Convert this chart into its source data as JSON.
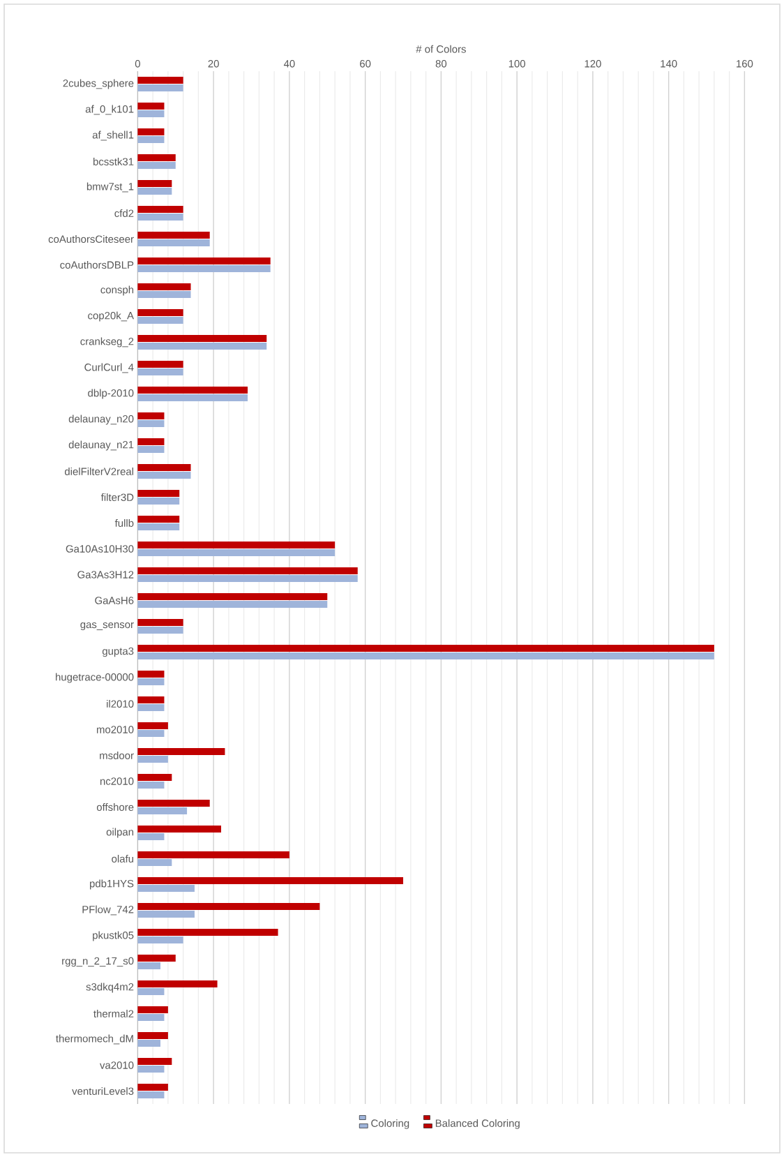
{
  "chart_data": {
    "type": "bar",
    "orientation": "horizontal",
    "xlabel": "# of Colors",
    "categories": [
      "2cubes_sphere",
      "af_0_k101",
      "af_shell1",
      "bcsstk31",
      "bmw7st_1",
      "cfd2",
      "coAuthorsCiteseer",
      "coAuthorsDBLP",
      "consph",
      "cop20k_A",
      "crankseg_2",
      "CurlCurl_4",
      "dblp-2010",
      "delaunay_n20",
      "delaunay_n21",
      "dielFilterV2real",
      "filter3D",
      "fullb",
      "Ga10As10H30",
      "Ga3As3H12",
      "GaAsH6",
      "gas_sensor",
      "gupta3",
      "hugetrace-00000",
      "il2010",
      "mo2010",
      "msdoor",
      "nc2010",
      "offshore",
      "oilpan",
      "olafu",
      "pdb1HYS",
      "PFlow_742",
      "pkustk05",
      "rgg_n_2_17_s0",
      "s3dkq4m2",
      "thermal2",
      "thermomech_dM",
      "va2010",
      "venturiLevel3"
    ],
    "series": [
      {
        "name": "Coloring",
        "color": "#9fb4da",
        "values": [
          12,
          7,
          7,
          10,
          9,
          12,
          19,
          35,
          14,
          12,
          34,
          12,
          29,
          7,
          7,
          14,
          11,
          11,
          52,
          58,
          50,
          12,
          152,
          7,
          7,
          7,
          8,
          7,
          13,
          7,
          9,
          15,
          15,
          12,
          6,
          7,
          7,
          6,
          7,
          7
        ]
      },
      {
        "name": "Balanced Coloring",
        "color": "#c00000",
        "values": [
          12,
          7,
          7,
          10,
          9,
          12,
          19,
          35,
          14,
          12,
          34,
          12,
          29,
          7,
          7,
          14,
          11,
          11,
          52,
          58,
          50,
          12,
          152,
          7,
          7,
          8,
          23,
          9,
          19,
          22,
          40,
          70,
          48,
          37,
          10,
          21,
          8,
          8,
          9,
          8
        ]
      }
    ],
    "xlim": [
      0,
      160
    ],
    "xticks": [
      0,
      20,
      40,
      60,
      80,
      100,
      120,
      140,
      160
    ],
    "grid": "x",
    "legend": "bottom"
  }
}
